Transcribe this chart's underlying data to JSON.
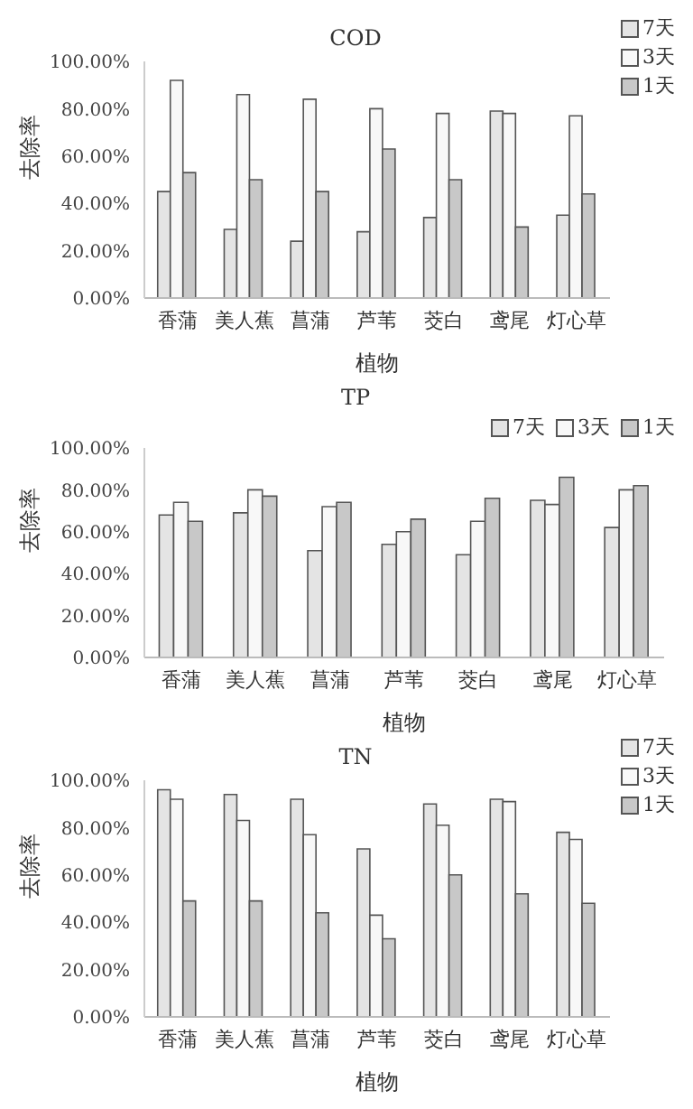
{
  "chart_data": [
    {
      "type": "bar",
      "title": "COD",
      "xlabel": "植物",
      "ylabel": "去除率",
      "categories": [
        "香蒲",
        "美人蕉",
        "菖蒲",
        "芦苇",
        "茭白",
        "鸢尾",
        "灯心草"
      ],
      "series": [
        {
          "name": "7天",
          "color": "#e4e4e4",
          "values": [
            45,
            29,
            24,
            28,
            34,
            79,
            35
          ]
        },
        {
          "name": "3天",
          "color": "#f8f8f8",
          "values": [
            92,
            86,
            84,
            80,
            78,
            78,
            77
          ]
        },
        {
          "name": "1天",
          "color": "#c8c8c8",
          "values": [
            53,
            50,
            45,
            63,
            50,
            30,
            44
          ]
        }
      ],
      "ylim": [
        0,
        100
      ],
      "yticks": [
        {
          "value": 0,
          "label": "0.00%"
        },
        {
          "value": 20,
          "label": "20.00%"
        },
        {
          "value": 40,
          "label": "40.00%"
        },
        {
          "value": 60,
          "label": "60.00%"
        },
        {
          "value": 80,
          "label": "80.00%"
        },
        {
          "value": 100,
          "label": "100.00%"
        }
      ],
      "legend": "top right",
      "grid": false
    },
    {
      "type": "bar",
      "title": "TP",
      "xlabel": "植物",
      "ylabel": "去除率",
      "categories": [
        "香蒲",
        "美人蕉",
        "菖蒲",
        "芦苇",
        "茭白",
        "鸢尾",
        "灯心草"
      ],
      "series": [
        {
          "name": "7天",
          "color": "#e4e4e4",
          "values": [
            68,
            69,
            51,
            54,
            49,
            75,
            62
          ]
        },
        {
          "name": "3天",
          "color": "#f8f8f8",
          "values": [
            74,
            80,
            72,
            60,
            65,
            73,
            80
          ]
        },
        {
          "name": "1天",
          "color": "#c8c8c8",
          "values": [
            65,
            77,
            74,
            66,
            76,
            86,
            82
          ]
        }
      ],
      "ylim": [
        0,
        100
      ],
      "yticks": [
        {
          "value": 0,
          "label": "0.00%"
        },
        {
          "value": 20,
          "label": "20.00%"
        },
        {
          "value": 40,
          "label": "40.00%"
        },
        {
          "value": 60,
          "label": "60.00%"
        },
        {
          "value": 80,
          "label": "80.00%"
        },
        {
          "value": 100,
          "label": "100.00%"
        }
      ],
      "legend": "top right",
      "grid": false
    },
    {
      "type": "bar",
      "title": "TN",
      "xlabel": "植物",
      "ylabel": "去除率",
      "categories": [
        "香蒲",
        "美人蕉",
        "菖蒲",
        "芦苇",
        "茭白",
        "鸢尾",
        "灯心草"
      ],
      "series": [
        {
          "name": "7天",
          "color": "#e4e4e4",
          "values": [
            96,
            94,
            92,
            71,
            90,
            92,
            78
          ]
        },
        {
          "name": "3天",
          "color": "#f8f8f8",
          "values": [
            92,
            83,
            77,
            43,
            81,
            91,
            75
          ]
        },
        {
          "name": "1天",
          "color": "#c8c8c8",
          "values": [
            49,
            49,
            44,
            33,
            60,
            52,
            48
          ]
        }
      ],
      "ylim": [
        0,
        100
      ],
      "yticks": [
        {
          "value": 0,
          "label": "0.00%"
        },
        {
          "value": 20,
          "label": "20.00%"
        },
        {
          "value": 40,
          "label": "40.00%"
        },
        {
          "value": 60,
          "label": "60.00%"
        },
        {
          "value": 80,
          "label": "80.00%"
        },
        {
          "value": 100,
          "label": "100.00%"
        }
      ],
      "legend": "top right",
      "grid": false
    }
  ]
}
